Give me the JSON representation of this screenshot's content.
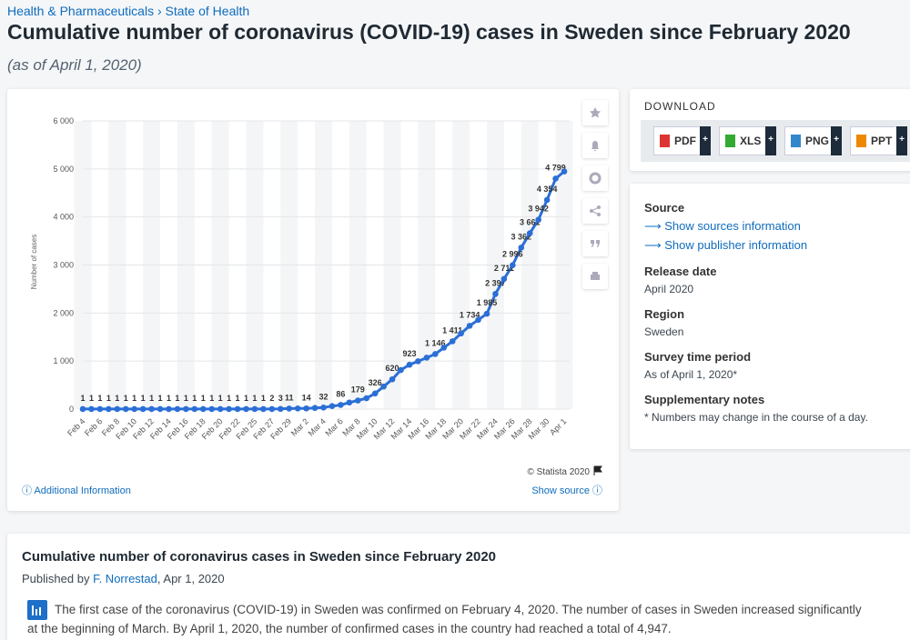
{
  "breadcrumb": [
    "Health & Pharmaceuticals",
    "State of Health"
  ],
  "title": "Cumulative number of coronavirus (COVID-19) cases in Sweden since February 2020",
  "subtitle": "(as of April 1, 2020)",
  "chart_data": {
    "type": "line",
    "y_label": "Number of cases",
    "copyright": "© Statista 2020",
    "color": "#2b6fd6",
    "grid": true,
    "categories": [
      "Feb 4",
      null,
      "Feb 6",
      null,
      "Feb 8",
      null,
      "Feb 10",
      null,
      "Feb 12",
      null,
      "Feb 14",
      null,
      "Feb 16",
      null,
      "Feb 18",
      null,
      "Feb 20",
      null,
      "Feb 22",
      null,
      "Feb 25",
      null,
      "Feb 27",
      null,
      "Feb 29",
      null,
      "Mar 2",
      null,
      "Mar 4",
      null,
      "Mar 6",
      null,
      "Mar 8",
      null,
      "Mar 10",
      null,
      "Mar 12",
      null,
      "Mar 14",
      null,
      "Mar 16",
      null,
      "Mar 18",
      null,
      "Mar 20",
      null,
      "Mar 22",
      null,
      "Mar 24",
      null,
      "Mar 26",
      null,
      "Mar 28",
      null,
      "Mar 30",
      null,
      "Apr 1"
    ],
    "values": [
      1,
      1,
      1,
      1,
      1,
      1,
      1,
      1,
      1,
      1,
      1,
      1,
      1,
      1,
      1,
      1,
      1,
      1,
      1,
      1,
      1,
      1,
      2,
      3,
      11,
      13,
      14,
      24,
      32,
      62,
      86,
      137,
      179,
      226,
      326,
      470,
      620,
      813,
      923,
      996,
      1070,
      1146,
      1279,
      1411,
      1574,
      1734,
      1858,
      1985,
      2397,
      2711,
      2996,
      3362,
      3661,
      3942,
      4354,
      4799,
      4947
    ],
    "value_labels": [
      "1",
      "1",
      "1",
      "1",
      "1",
      "1",
      "1",
      "1",
      "1",
      "1",
      "1",
      "1",
      "1",
      "1",
      "1",
      "1",
      "1",
      "1",
      "1",
      "1",
      "1",
      "1",
      "2",
      "3",
      "11",
      null,
      "14",
      null,
      "32",
      null,
      "86",
      null,
      "179",
      null,
      "326",
      null,
      "620",
      null,
      "923",
      null,
      null,
      "1 146",
      null,
      "1 411",
      null,
      "1 734",
      null,
      "1 985",
      "2 397",
      "2 711",
      "2 996",
      "3 362",
      "3 661",
      "3 942",
      "4 354",
      "4 799",
      null
    ],
    "ylim": [
      0,
      6000
    ],
    "yticks": [
      0,
      {
        "value": 1000,
        "label": "1 000"
      },
      {
        "value": 2000,
        "label": "2 000"
      },
      {
        "value": 3000,
        "label": "3 000"
      },
      {
        "value": 4000,
        "label": "4 000"
      },
      {
        "value": 5000,
        "label": "5 000"
      },
      {
        "value": 6000,
        "label": "6 000"
      }
    ]
  },
  "chart_links": [
    "Additional Information",
    "Show source"
  ],
  "download": {
    "heading": "DOWNLOAD",
    "formats": [
      "PDF",
      "XLS",
      "PNG",
      "PPT"
    ]
  },
  "details": {
    "source_label": "Source",
    "source_links": [
      "Show sources information",
      "Show publisher information"
    ],
    "items": [
      {
        "label": "Release date",
        "value": "April 2020"
      },
      {
        "label": "Region",
        "value": "Sweden"
      },
      {
        "label": "Survey time period",
        "value": "As of April 1, 2020*"
      },
      {
        "label": "Supplementary notes",
        "value": "* Numbers may change in the course of a day."
      }
    ]
  },
  "article": {
    "title": "Cumulative number of coronavirus cases in Sweden since February 2020",
    "published_prefix": "Published by",
    "author": "F. Norrestad",
    "date": ", Apr 1, 2020",
    "text": "The first case of the coronavirus (COVID-19) in Sweden was confirmed on February 4, 2020. The number of cases in Sweden increased significantly at the beginning of March. By April 1, 2020, the number of confirmed cases in the country had reached a total of 4,947."
  }
}
